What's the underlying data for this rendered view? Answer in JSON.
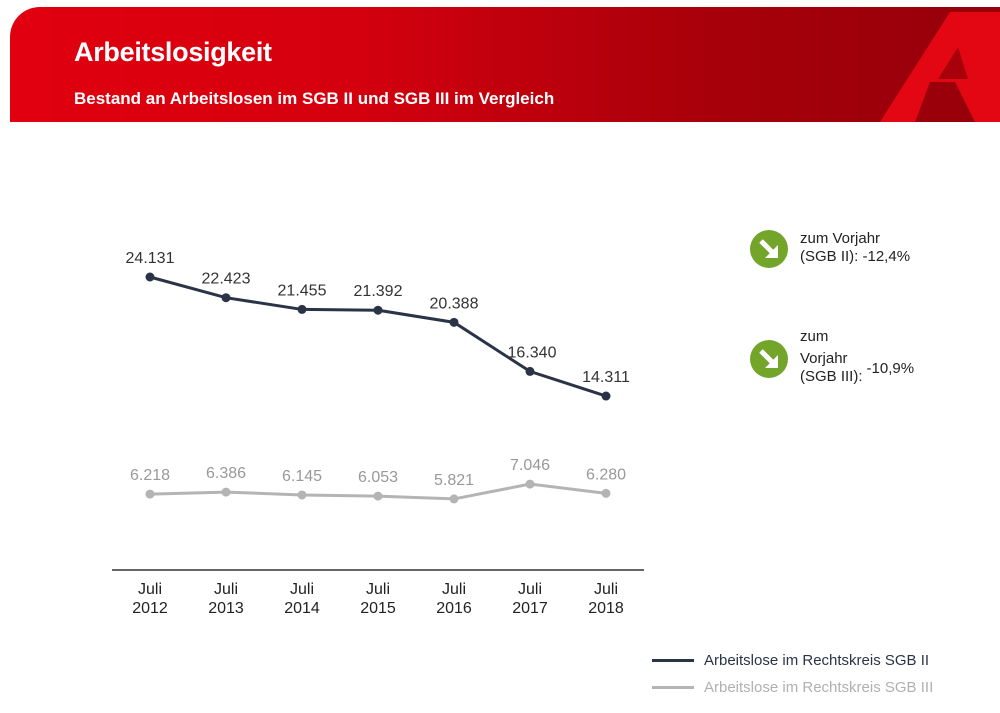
{
  "header": {
    "title": "Arbeitslosigkeit",
    "subtitle": "Bestand an Arbeitslosen im SGB II und SGB III im Vergleich"
  },
  "colors": {
    "sgb2": "#2b3447",
    "sgb3": "#b4b4b4",
    "brand_red": "#e1000f",
    "arrow_green": "#73a52a"
  },
  "callouts": [
    {
      "line1": "zum Vorjahr",
      "line2": "(SGB II): -12,4%",
      "icon": "arrow-down-right-icon"
    },
    {
      "line1": "zum",
      "line2": "Vorjahr",
      "line3": "(SGB III):",
      "value": "-10,9%",
      "icon": "arrow-down-right-icon"
    }
  ],
  "chart_data": {
    "type": "line",
    "title": "Bestand an Arbeitslosen im SGB II und SGB III im Vergleich",
    "categories": [
      [
        "Juli",
        "2012"
      ],
      [
        "Juli",
        "2013"
      ],
      [
        "Juli",
        "2014"
      ],
      [
        "Juli",
        "2015"
      ],
      [
        "Juli",
        "2016"
      ],
      [
        "Juli",
        "2017"
      ],
      [
        "Juli",
        "2018"
      ]
    ],
    "series": [
      {
        "name": "Arbeitslose im Rechtskreis SGB II",
        "values": [
          24131,
          22423,
          21455,
          21392,
          20388,
          16340,
          14311
        ],
        "labels": [
          "24.131",
          "22.423",
          "21.455",
          "21.392",
          "20.388",
          "16.340",
          "14.311"
        ]
      },
      {
        "name": "Arbeitslose im Rechtskreis SGB III",
        "values": [
          6218,
          6386,
          6145,
          6053,
          5821,
          7046,
          6280
        ],
        "labels": [
          "6.218",
          "6.386",
          "6.145",
          "6.053",
          "5.821",
          "7.046",
          "6.280"
        ]
      }
    ],
    "xlabel": "",
    "ylabel": "",
    "grid": false,
    "legend": "bottom-right"
  }
}
